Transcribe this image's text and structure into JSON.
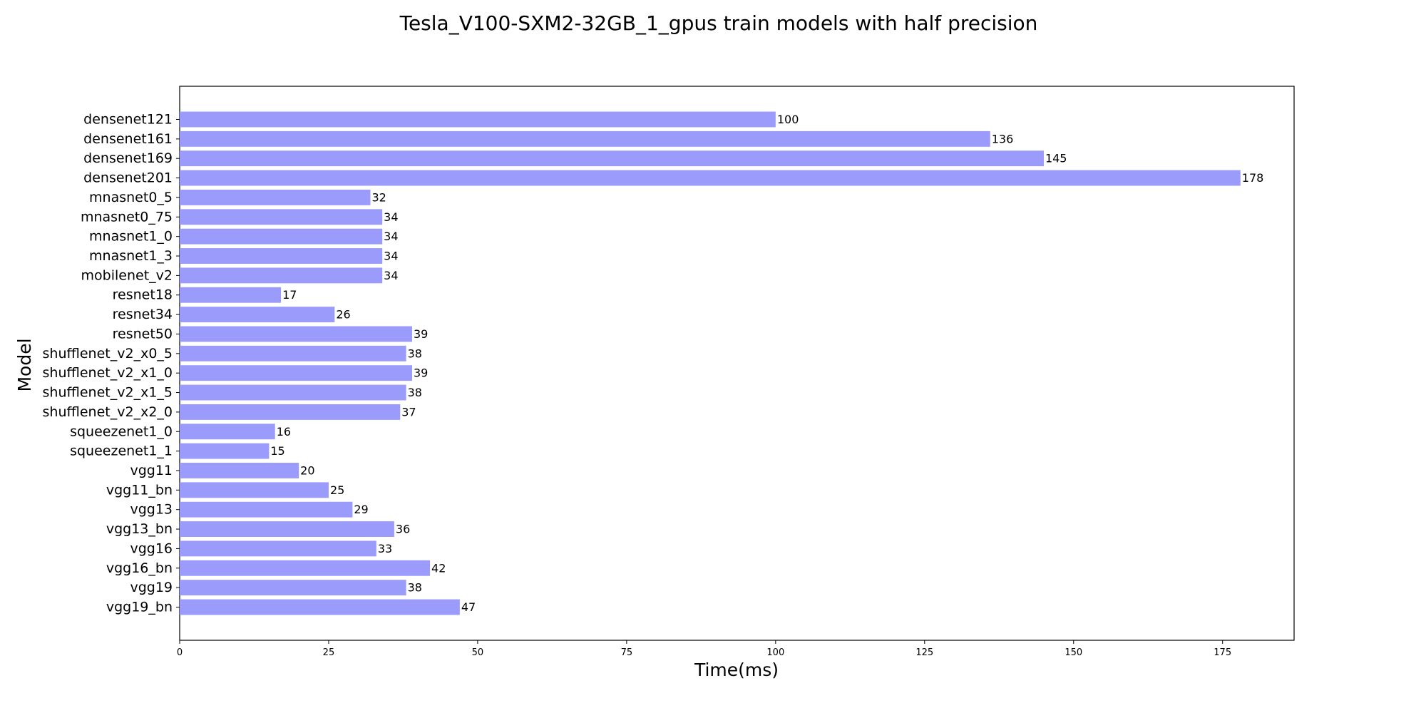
{
  "chart_data": {
    "type": "bar",
    "orientation": "horizontal",
    "title": "Tesla_V100-SXM2-32GB_1_gpus train models with half precision",
    "xlabel": "Time(ms)",
    "ylabel": "Model",
    "xlim": [
      0,
      187
    ],
    "xticks": [
      0,
      25,
      50,
      75,
      100,
      125,
      150,
      175
    ],
    "grid": false,
    "bar_color": "#9b9bfb",
    "categories": [
      "densenet121",
      "densenet161",
      "densenet169",
      "densenet201",
      "mnasnet0_5",
      "mnasnet0_75",
      "mnasnet1_0",
      "mnasnet1_3",
      "mobilenet_v2",
      "resnet18",
      "resnet34",
      "resnet50",
      "shufflenet_v2_x0_5",
      "shufflenet_v2_x1_0",
      "shufflenet_v2_x1_5",
      "shufflenet_v2_x2_0",
      "squeezenet1_0",
      "squeezenet1_1",
      "vgg11",
      "vgg11_bn",
      "vgg13",
      "vgg13_bn",
      "vgg16",
      "vgg16_bn",
      "vgg19",
      "vgg19_bn"
    ],
    "values": [
      100,
      136,
      145,
      178,
      32,
      34,
      34,
      34,
      34,
      17,
      26,
      39,
      38,
      39,
      38,
      37,
      16,
      15,
      20,
      25,
      29,
      36,
      33,
      42,
      38,
      47
    ],
    "value_labels": [
      "100",
      "136",
      "145",
      "178",
      "32",
      "34",
      "34",
      "34",
      "34",
      "17",
      "26",
      "39",
      "38",
      "39",
      "38",
      "37",
      "16",
      "15",
      "20",
      "25",
      "29",
      "36",
      "33",
      "42",
      "38",
      "47"
    ]
  }
}
